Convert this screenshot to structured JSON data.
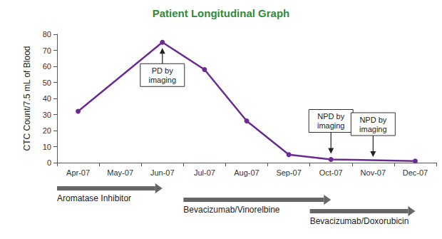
{
  "chart_data": {
    "type": "line",
    "title": "Patient Longitudinal Graph",
    "y_label": "CTC Count/7.5 mL of Blood",
    "categories": [
      "Apr-07",
      "May-07",
      "Jun-07",
      "Jul-07",
      "Aug-07",
      "Sep-07",
      "Oct-07",
      "Nov-07",
      "Dec-07"
    ],
    "values": [
      32,
      null,
      75,
      58,
      26,
      5,
      2,
      null,
      1
    ],
    "color": "#6b2c91",
    "marker": "circle",
    "ylim": [
      0,
      80
    ],
    "yticks": [
      0,
      10,
      20,
      30,
      40,
      50,
      60,
      70,
      80
    ],
    "grid": false,
    "annotations": [
      {
        "x": "Jun-07",
        "text": "PD by imaging"
      },
      {
        "x": "Oct-07",
        "text": "NPD by imaging"
      },
      {
        "x": "Nov-07",
        "text": "NPD by imaging"
      }
    ],
    "treatments": [
      {
        "label": "Aromatase Inhibitor",
        "start": "Apr-07",
        "end": "Jun-07"
      },
      {
        "label": "Bevacizumab/Vinorelbine",
        "start": "Jul-07",
        "end": "Oct-07"
      },
      {
        "label": "Bevacizumab/Doxorubicin",
        "start": "Oct-07",
        "end": "Dec-07"
      }
    ]
  }
}
